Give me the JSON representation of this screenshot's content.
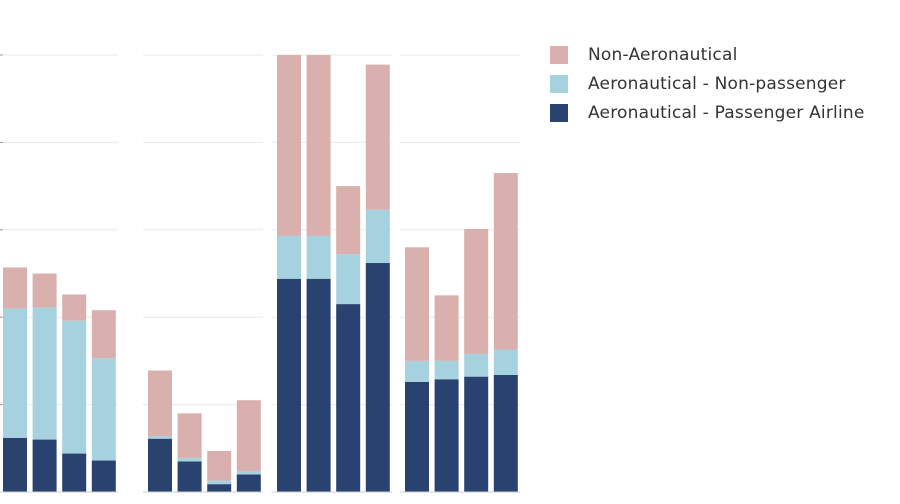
{
  "chart_data": {
    "type": "bar",
    "stacked": true,
    "grid": true,
    "legend_position": "top-right",
    "ylim": [
      0,
      500
    ],
    "groups": [
      {
        "name": "",
        "categories": [
          "",
          "",
          "",
          ""
        ]
      },
      {
        "name": "",
        "categories": [
          "",
          "",
          "",
          ""
        ]
      },
      {
        "name": "",
        "categories": [
          "",
          "",
          "",
          ""
        ]
      },
      {
        "name": "",
        "categories": [
          "",
          "",
          "",
          ""
        ]
      }
    ],
    "series": [
      {
        "name": "Aeronautical - Passenger Airline",
        "color": "#2a4270",
        "values": [
          62,
          60,
          44,
          36,
          61,
          35,
          9,
          20,
          244,
          244,
          215,
          262,
          126,
          129,
          132,
          134
        ]
      },
      {
        "name": "Aeronautical - Non-passenger",
        "color": "#a6d1de",
        "values": [
          148,
          151,
          152,
          117,
          3,
          4,
          4,
          4,
          49,
          49,
          57,
          61,
          24,
          21,
          26,
          29
        ]
      },
      {
        "name": "Non-Aeronautical",
        "color": "#d9b0ad",
        "values": [
          47,
          39,
          30,
          55,
          75,
          51,
          34,
          81,
          207,
          207,
          78,
          166,
          130,
          75,
          143,
          202
        ]
      }
    ]
  },
  "legend": {
    "items": [
      {
        "label": "Non-Aeronautical",
        "color": "#d9b0ad"
      },
      {
        "label": "Aeronautical - Non-passenger",
        "color": "#a6d1de"
      },
      {
        "label": "Aeronautical - Passenger Airline",
        "color": "#2a4270"
      }
    ]
  }
}
